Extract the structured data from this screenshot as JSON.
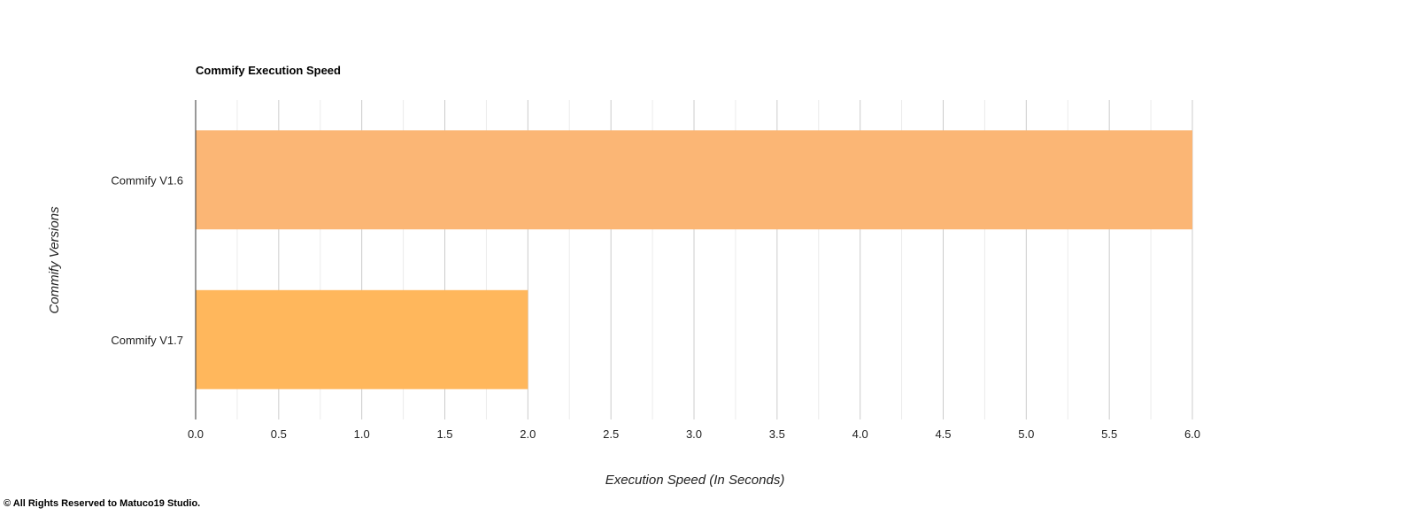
{
  "chart_data": {
    "type": "bar",
    "orientation": "horizontal",
    "title": "Commify Execution Speed",
    "xlabel": "Execution Speed (In Seconds)",
    "ylabel": "Commify Versions",
    "categories": [
      "Commify V1.6",
      "Commify V1.7"
    ],
    "values": [
      6.0,
      2.0
    ],
    "colors": [
      "#fbb675",
      "#ffb75c"
    ],
    "xlim": [
      0,
      6
    ],
    "xticks": [
      "0.0",
      "0.5",
      "1.0",
      "1.5",
      "2.0",
      "2.5",
      "3.0",
      "3.5",
      "4.0",
      "4.5",
      "5.0",
      "5.5",
      "6.0"
    ],
    "grid": true,
    "legend": "none"
  },
  "footer": {
    "copyright": "© All Rights Reserved to Matuco19 Studio."
  }
}
